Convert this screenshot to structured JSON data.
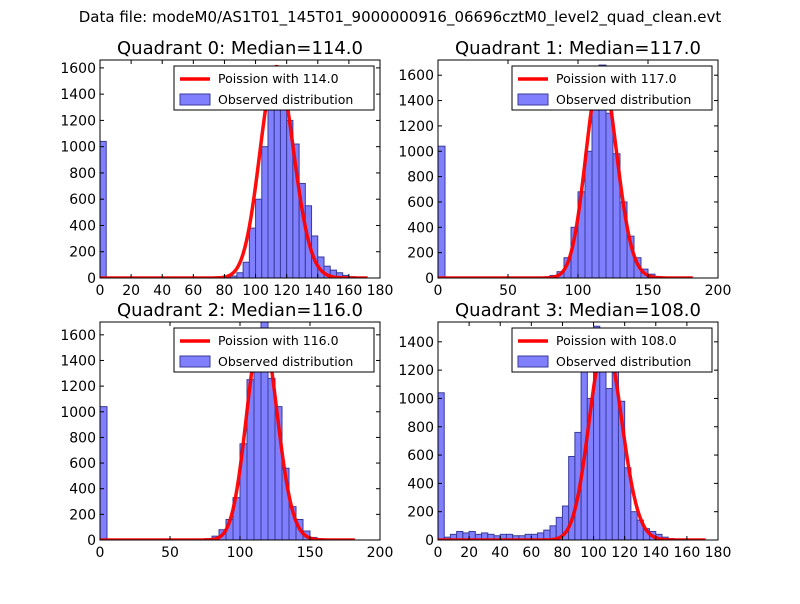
{
  "suptitle": "Data file: modeM0/AS1T01_145T01_9000000916_06696cztM0_level2_quad_clean.evt",
  "colors": {
    "bar_fill": "#8080ff",
    "bar_edge": "#3a3a9a",
    "fit_line": "#ff0000",
    "axes": "#000000"
  },
  "chart_data": [
    {
      "type": "bar",
      "title": "Quadrant 0: Median=114.0",
      "xlim": [
        0,
        180
      ],
      "ylim": [
        0,
        1660
      ],
      "xticks": [
        0,
        20,
        40,
        60,
        80,
        100,
        120,
        140,
        160,
        180
      ],
      "yticks": [
        0,
        200,
        400,
        600,
        800,
        1000,
        1200,
        1400,
        1600
      ],
      "bin_width": 4,
      "bin_starts": [
        0,
        80,
        84,
        88,
        92,
        96,
        100,
        104,
        108,
        112,
        116,
        120,
        124,
        128,
        132,
        136,
        140,
        144,
        148,
        152,
        156,
        160,
        164
      ],
      "values": [
        1040,
        5,
        15,
        40,
        120,
        380,
        600,
        1000,
        1280,
        1600,
        1570,
        1200,
        1020,
        720,
        550,
        320,
        160,
        90,
        60,
        40,
        20,
        10,
        5
      ],
      "fit": {
        "lambda": 114.0,
        "scale": 1610,
        "x_range": [
          0,
          172
        ]
      },
      "legend": [
        "Poission with 114.0",
        "Observed distribution"
      ]
    },
    {
      "type": "bar",
      "title": "Quadrant 1: Median=117.0",
      "xlim": [
        0,
        200
      ],
      "ylim": [
        0,
        1720
      ],
      "xticks": [
        0,
        50,
        100,
        150,
        200
      ],
      "yticks": [
        0,
        200,
        400,
        600,
        800,
        1000,
        1200,
        1400,
        1600
      ],
      "bin_width": 5,
      "bin_starts": [
        0,
        80,
        85,
        90,
        95,
        100,
        105,
        110,
        115,
        120,
        125,
        130,
        135,
        140,
        145,
        150,
        155
      ],
      "values": [
        1040,
        20,
        50,
        160,
        400,
        680,
        1000,
        1350,
        1680,
        1300,
        980,
        600,
        330,
        160,
        70,
        30,
        10
      ],
      "fit": {
        "lambda": 117.0,
        "scale": 1640,
        "x_range": [
          0,
          182
        ]
      },
      "legend": [
        "Poission with 117.0",
        "Observed distribution"
      ]
    },
    {
      "type": "bar",
      "title": "Quadrant 2: Median=116.0",
      "xlim": [
        0,
        200
      ],
      "ylim": [
        0,
        1700
      ],
      "xticks": [
        0,
        50,
        100,
        150,
        200
      ],
      "yticks": [
        0,
        200,
        400,
        600,
        800,
        1000,
        1200,
        1400,
        1600
      ],
      "bin_width": 5,
      "bin_starts": [
        0,
        75,
        80,
        85,
        90,
        95,
        100,
        105,
        110,
        115,
        120,
        125,
        130,
        135,
        140,
        145,
        150,
        155
      ],
      "values": [
        1040,
        10,
        30,
        80,
        160,
        330,
        750,
        1250,
        1500,
        1750,
        1260,
        1040,
        560,
        260,
        160,
        70,
        20,
        5
      ],
      "fit": {
        "lambda": 116.0,
        "scale": 1640,
        "x_range": [
          0,
          182
        ]
      },
      "legend": [
        "Poission with 116.0",
        "Observed distribution"
      ]
    },
    {
      "type": "bar",
      "title": "Quadrant 3: Median=108.0",
      "xlim": [
        0,
        180
      ],
      "ylim": [
        0,
        1540
      ],
      "xticks": [
        0,
        20,
        40,
        60,
        80,
        100,
        120,
        140,
        160,
        180
      ],
      "yticks": [
        0,
        200,
        400,
        600,
        800,
        1000,
        1200,
        1400
      ],
      "bin_width": 4,
      "bin_starts": [
        0,
        4,
        8,
        12,
        16,
        20,
        24,
        28,
        32,
        36,
        40,
        44,
        48,
        52,
        56,
        60,
        64,
        68,
        72,
        76,
        80,
        84,
        88,
        92,
        96,
        100,
        104,
        108,
        112,
        116,
        120,
        124,
        128,
        132,
        136,
        140,
        144,
        148,
        152,
        156
      ],
      "values": [
        1040,
        20,
        40,
        60,
        50,
        60,
        40,
        50,
        40,
        30,
        40,
        40,
        30,
        30,
        40,
        40,
        50,
        70,
        100,
        160,
        240,
        590,
        760,
        1200,
        1000,
        1510,
        1320,
        1070,
        1420,
        980,
        510,
        200,
        140,
        80,
        60,
        40,
        20,
        10,
        5,
        3
      ],
      "fit": {
        "lambda": 108.0,
        "scale": 1400,
        "x_range": [
          0,
          172
        ]
      },
      "legend": [
        "Poission with 108.0",
        "Observed distribution"
      ]
    }
  ]
}
